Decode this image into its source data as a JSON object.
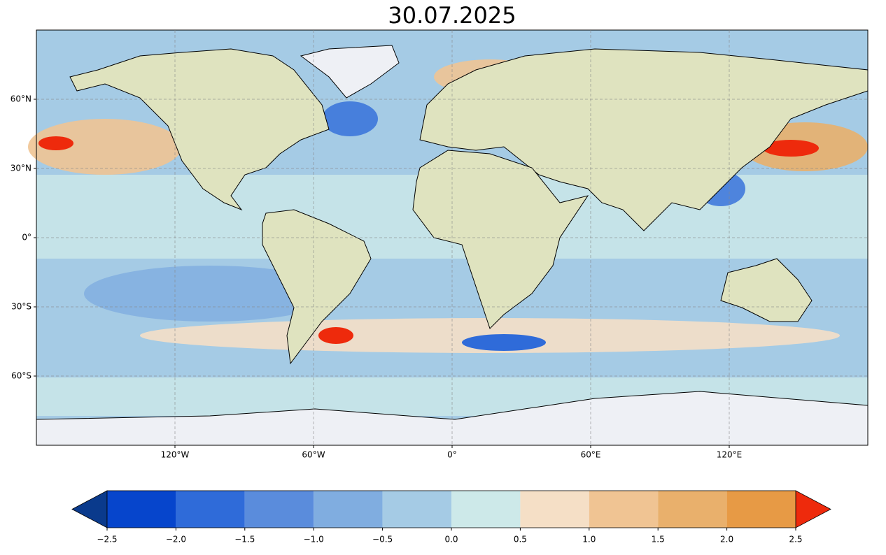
{
  "map": {
    "type": "map",
    "title": "30.07.2025",
    "xlim": [
      -180,
      180
    ],
    "ylim": [
      -90,
      90
    ],
    "xticks": [
      {
        "value": -120,
        "label": "120°W"
      },
      {
        "value": -60,
        "label": "60°W"
      },
      {
        "value": 0,
        "label": "0°"
      },
      {
        "value": 60,
        "label": "60°E"
      },
      {
        "value": 120,
        "label": "120°E"
      }
    ],
    "yticks": [
      {
        "value": 60,
        "label": "60°N"
      },
      {
        "value": 30,
        "label": "30°N"
      },
      {
        "value": 0,
        "label": "0°"
      },
      {
        "value": -30,
        "label": "30°S"
      },
      {
        "value": -60,
        "label": "60°S"
      }
    ],
    "grid": true
  },
  "colorbar": {
    "type": "colorbar",
    "ticks": [
      {
        "value": -2.5,
        "label": "−2.5"
      },
      {
        "value": -2,
        "label": "−2.0"
      },
      {
        "value": -1.5,
        "label": "−1.5"
      },
      {
        "value": -1,
        "label": "−1.0"
      },
      {
        "value": -0.5,
        "label": "−0.5"
      },
      {
        "value": 0,
        "label": "0.0"
      },
      0.5,
      {
        "value": 1,
        "label": "1.0"
      },
      1.5,
      {
        "value": 2,
        "label": "2.0"
      },
      2.5
    ],
    "colors": [
      "#0645cc",
      "#2f6bd9",
      "#5a8cdc",
      "#80ade0",
      "#a5cbe5",
      "#cde9e9",
      "#f5dfc6",
      "#f0c493",
      "#e9b06c",
      "#e79a45"
    ],
    "under_color": "#0a3a8c",
    "over_color": "#ee2a0c"
  }
}
